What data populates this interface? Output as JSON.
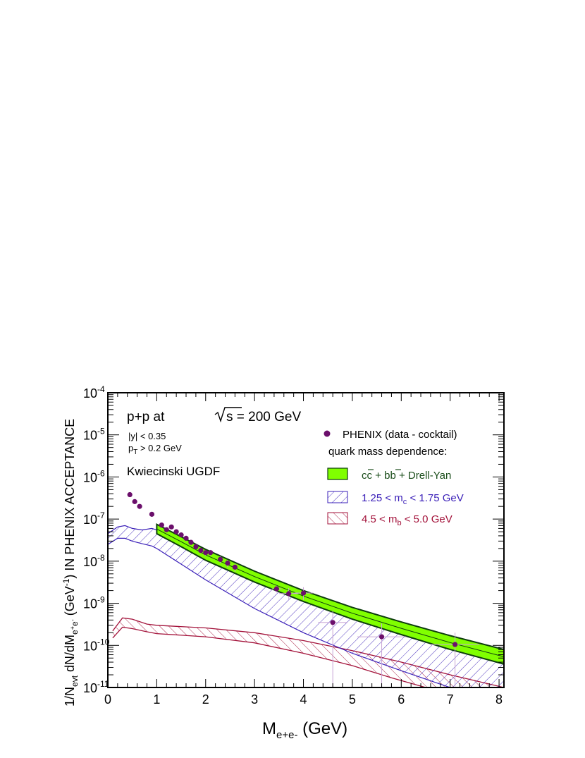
{
  "chart_data": {
    "type": "scatter",
    "title": "",
    "xlabel": {
      "main": "M",
      "sub": "e+e-",
      "sub_sup": "+",
      "sub_sub": "-",
      "unit": "(GeV)"
    },
    "ylabel": "1/N_evt dN/dM_e+e- (GeV^-1) IN PHENIX ACCEPTANCE",
    "ylabel_parts": {
      "a": "1/N",
      "a_sub": "evt",
      "b": " dN/dM",
      "b_sub": "e",
      "b_sub_sup": "+",
      "b_sub2": "e",
      "b_sub2_sup": "-",
      "c": " (GeV",
      "c_sup": "-1",
      "d": ") IN PHENIX ACCEPTANCE"
    },
    "xlim": [
      0,
      8.1
    ],
    "ylim": [
      1e-11,
      0.0001
    ],
    "yscale": "log",
    "x_ticks": [
      0,
      1,
      2,
      3,
      4,
      5,
      6,
      7,
      8
    ],
    "x_tick_labels": [
      "0",
      "1",
      "2",
      "3",
      "4",
      "5",
      "6",
      "7",
      "8"
    ],
    "y_ticks": [
      {
        "value": 1e-11,
        "base": "10",
        "exp": "-11"
      },
      {
        "value": 1e-10,
        "base": "10",
        "exp": "-10"
      },
      {
        "value": 1e-09,
        "base": "10",
        "exp": "-9"
      },
      {
        "value": 1e-08,
        "base": "10",
        "exp": "-8"
      },
      {
        "value": 1e-07,
        "base": "10",
        "exp": "-7"
      },
      {
        "value": 1e-06,
        "base": "10",
        "exp": "-6"
      },
      {
        "value": 1e-05,
        "base": "10",
        "exp": "-5"
      },
      {
        "value": 0.0001,
        "base": "10",
        "exp": "-4"
      }
    ],
    "annotations": {
      "system_a": "p+p  at ",
      "system_b": "s = 200 GeV",
      "cut_y": "|y| < 0.35",
      "cut_pt_a": "p",
      "cut_pt_sub": "T",
      "cut_pt_b": " > 0.2 GeV",
      "model": "Kwiecinski UGDF"
    },
    "legend": {
      "position": "upper-right",
      "phenix": "PHENIX (data - cocktail)",
      "header": "quark mass dependence:",
      "green_a": "c",
      "green_b": "c",
      "green_c": " + b",
      "green_d": "b",
      "green_e": " + Drell-Yan",
      "charm_a": "1.25 < m",
      "charm_sub": "c",
      "charm_b": " < 1.75 GeV",
      "bottom_a": "4.5 < m",
      "bottom_sub": "b",
      "bottom_b": " < 5.0 GeV"
    },
    "colors": {
      "data": "#6b0f6b",
      "total_fill": "#80ff00",
      "total_edge": "#0d3d0d",
      "charm": "#3a1fb8",
      "bottom": "#a3123a",
      "green_text": "#1a4d1a"
    },
    "data_points": [
      {
        "x": 0.45,
        "y": 3.8e-07,
        "ex": 0.05,
        "eylo": 3.4e-07,
        "eyhi": 4.2e-07
      },
      {
        "x": 0.55,
        "y": 2.6e-07,
        "ex": 0.05,
        "eylo": 2.3e-07,
        "eyhi": 2.9e-07
      },
      {
        "x": 0.65,
        "y": 2e-07,
        "ex": 0.05,
        "eylo": 1.7e-07,
        "eyhi": 2.3e-07
      },
      {
        "x": 0.9,
        "y": 1.3e-07,
        "ex": 0.05,
        "eylo": 1.15e-07,
        "eyhi": 1.45e-07
      },
      {
        "x": 1.1,
        "y": 7.2e-08,
        "ex": 0.05,
        "eylo": 6.4e-08,
        "eyhi": 8e-08
      },
      {
        "x": 1.2,
        "y": 5.6e-08,
        "ex": 0.05,
        "eylo": 5e-08,
        "eyhi": 6.2e-08
      },
      {
        "x": 1.3,
        "y": 6.5e-08,
        "ex": 0.05,
        "eylo": 5.8e-08,
        "eyhi": 7.2e-08
      },
      {
        "x": 1.4,
        "y": 5e-08,
        "ex": 0.05,
        "eylo": 4.4e-08,
        "eyhi": 5.6e-08
      },
      {
        "x": 1.5,
        "y": 4.2e-08,
        "ex": 0.05,
        "eylo": 3.7e-08,
        "eyhi": 4.7e-08
      },
      {
        "x": 1.6,
        "y": 3.5e-08,
        "ex": 0.05,
        "eylo": 3.1e-08,
        "eyhi": 3.9e-08
      },
      {
        "x": 1.7,
        "y": 2.8e-08,
        "ex": 0.05,
        "eylo": 2.45e-08,
        "eyhi": 3.15e-08
      },
      {
        "x": 1.8,
        "y": 2.2e-08,
        "ex": 0.05,
        "eylo": 1.9e-08,
        "eyhi": 2.5e-08
      },
      {
        "x": 1.9,
        "y": 1.8e-08,
        "ex": 0.05,
        "eylo": 1.55e-08,
        "eyhi": 2.05e-08
      },
      {
        "x": 2.0,
        "y": 1.6e-08,
        "ex": 0.05,
        "eylo": 1.35e-08,
        "eyhi": 1.85e-08
      },
      {
        "x": 2.1,
        "y": 1.6e-08,
        "ex": 0.05,
        "eylo": 1.35e-08,
        "eyhi": 1.85e-08
      },
      {
        "x": 2.3,
        "y": 1.1e-08,
        "ex": 0.05,
        "eylo": 9e-09,
        "eyhi": 1.3e-08
      },
      {
        "x": 2.45,
        "y": 9e-09,
        "ex": 0.05,
        "eylo": 7.2e-09,
        "eyhi": 1.08e-08
      },
      {
        "x": 2.6,
        "y": 7.2e-09,
        "ex": 0.05,
        "eylo": 5.6e-09,
        "eyhi": 8.8e-09
      },
      {
        "x": 3.45,
        "y": 2.2e-09,
        "ex": 0.1,
        "eylo": 1.8e-09,
        "eyhi": 2.6e-09
      },
      {
        "x": 3.7,
        "y": 1.7e-09,
        "ex": 0.2,
        "eylo": 1.2e-09,
        "eyhi": 2.3e-09
      },
      {
        "x": 4.0,
        "y": 1.75e-09,
        "ex": 0.2,
        "eylo": 1.2e-09,
        "eyhi": 2.4e-09
      },
      {
        "x": 4.6,
        "y": 3.5e-10,
        "ex": 0.3,
        "eylo": 1e-11,
        "eyhi": 6.5e-10
      },
      {
        "x": 5.6,
        "y": 1.6e-10,
        "ex": 0.5,
        "eylo": 1e-11,
        "eyhi": 3.3e-10
      },
      {
        "x": 7.1,
        "y": 1.05e-10,
        "ex": 0.5,
        "eylo": 1e-11,
        "eyhi": 2e-10
      }
    ],
    "band_total": {
      "upper": [
        [
          1.0,
          7.5e-08
        ],
        [
          1.5,
          3.8e-08
        ],
        [
          2.0,
          1.9e-08
        ],
        [
          3.0,
          5.8e-09
        ],
        [
          4.0,
          2e-09
        ],
        [
          5.0,
          8e-10
        ],
        [
          6.0,
          3.6e-10
        ],
        [
          7.0,
          1.7e-10
        ],
        [
          8.1,
          8e-11
        ]
      ],
      "lower": [
        [
          1.0,
          4.5e-08
        ],
        [
          1.5,
          2.2e-08
        ],
        [
          2.0,
          1.05e-08
        ],
        [
          3.0,
          3.2e-09
        ],
        [
          4.0,
          1.1e-09
        ],
        [
          5.0,
          4.2e-10
        ],
        [
          6.0,
          1.8e-10
        ],
        [
          7.0,
          8e-11
        ],
        [
          8.1,
          3.6e-11
        ]
      ]
    },
    "band_charm": {
      "upper": [
        [
          0.0,
          4.5e-08
        ],
        [
          0.2,
          6.5e-08
        ],
        [
          0.35,
          7e-08
        ],
        [
          0.5,
          6e-08
        ],
        [
          0.7,
          5.5e-08
        ],
        [
          0.9,
          6e-08
        ],
        [
          1.0,
          5.5e-08
        ],
        [
          1.5,
          2.8e-08
        ],
        [
          2.0,
          1.3e-08
        ],
        [
          3.0,
          3.8e-09
        ],
        [
          4.0,
          1.25e-09
        ],
        [
          5.0,
          4.8e-10
        ],
        [
          6.0,
          2e-10
        ],
        [
          7.0,
          9.5e-11
        ],
        [
          8.1,
          4.5e-11
        ]
      ],
      "lower": [
        [
          0.0,
          2.5e-08
        ],
        [
          0.2,
          3.5e-08
        ],
        [
          0.35,
          3.5e-08
        ],
        [
          0.5,
          3e-08
        ],
        [
          0.7,
          2.6e-08
        ],
        [
          0.9,
          2.3e-08
        ],
        [
          1.0,
          2e-08
        ],
        [
          1.5,
          8.5e-09
        ],
        [
          2.0,
          3.6e-09
        ],
        [
          3.0,
          7.5e-10
        ],
        [
          4.0,
          2e-10
        ],
        [
          5.0,
          6.5e-11
        ],
        [
          6.0,
          2.5e-11
        ],
        [
          7.0,
          1e-11
        ],
        [
          8.1,
          1e-11
        ]
      ]
    },
    "band_bottom": {
      "upper": [
        [
          0.1,
          2.2e-10
        ],
        [
          0.3,
          4.5e-10
        ],
        [
          0.5,
          4.2e-10
        ],
        [
          0.8,
          3.2e-10
        ],
        [
          1.0,
          3e-10
        ],
        [
          2.0,
          2.6e-10
        ],
        [
          3.0,
          2e-10
        ],
        [
          4.0,
          1.3e-10
        ],
        [
          5.0,
          7.5e-11
        ],
        [
          6.0,
          4e-11
        ],
        [
          7.0,
          2e-11
        ],
        [
          8.1,
          1e-11
        ]
      ],
      "lower": [
        [
          0.1,
          1.5e-10
        ],
        [
          0.3,
          2.7e-10
        ],
        [
          0.5,
          2.5e-10
        ],
        [
          0.8,
          2.1e-10
        ],
        [
          1.0,
          1.9e-10
        ],
        [
          2.0,
          1.6e-10
        ],
        [
          3.0,
          1.15e-10
        ],
        [
          4.0,
          6.5e-11
        ],
        [
          5.0,
          3.3e-11
        ],
        [
          5.8,
          1.7e-11
        ],
        [
          6.5,
          1e-11
        ]
      ]
    }
  }
}
